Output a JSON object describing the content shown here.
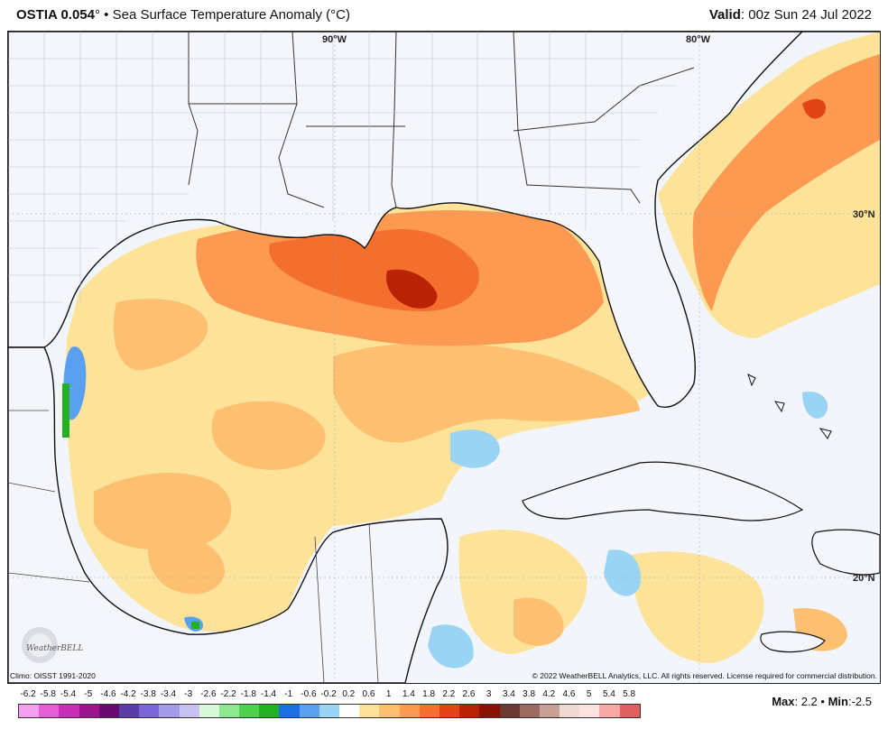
{
  "header": {
    "product": "OSTIA 0.054",
    "degree": "°",
    "bullet": "•",
    "title": "Sea Surface Temperature Anomaly (",
    "unit": "°C",
    "title_close": ")",
    "valid_label": "Valid",
    "valid_value": ": 00z Sun 24 Jul 2022"
  },
  "map": {
    "lon_labels": [
      "90°W",
      "80°W"
    ],
    "lat_labels": [
      "30°N",
      "20°N"
    ],
    "climo": "Climo: OISST 1991-2020",
    "copyright": "© 2022 WeatherBELL Analytics, LLC. All rights reserved. License required for commercial distribution.",
    "logo_text": "WeatherBELL"
  },
  "legend": {
    "ticks": [
      "-6.2",
      "-5.8",
      "-5.4",
      "-5",
      "-4.6",
      "-4.2",
      "-3.8",
      "-3.4",
      "-3",
      "-2.6",
      "-2.2",
      "-1.8",
      "-1.4",
      "-1",
      "-0.6",
      "-0.2",
      "0.2",
      "0.6",
      "1",
      "1.4",
      "1.8",
      "2.2",
      "2.6",
      "3",
      "3.4",
      "3.8",
      "4.2",
      "4.6",
      "5",
      "5.4",
      "5.8"
    ],
    "colors": [
      "#f49ef0",
      "#e55ed8",
      "#c92fb6",
      "#9a138b",
      "#6b0a6e",
      "#5a3ea8",
      "#7b68d8",
      "#a49be8",
      "#c8c2f2",
      "#d9f7d9",
      "#8fe88f",
      "#4fd14f",
      "#23b023",
      "#1c6fe0",
      "#5aa0f0",
      "#9ad4f5",
      "#ffffff",
      "#fde39a",
      "#fcc070",
      "#fb9a50",
      "#f46f2e",
      "#e24416",
      "#b82306",
      "#8a1204",
      "#6a3a32",
      "#9b6a60",
      "#c8a098",
      "#eed8d2",
      "#fde2e2",
      "#f9a8a8",
      "#e06060"
    ]
  },
  "stats": {
    "max_label": "Max",
    "max_value": ": 2.2",
    "separator": "•",
    "min_label": "Min",
    "min_value": ":-2.5"
  }
}
